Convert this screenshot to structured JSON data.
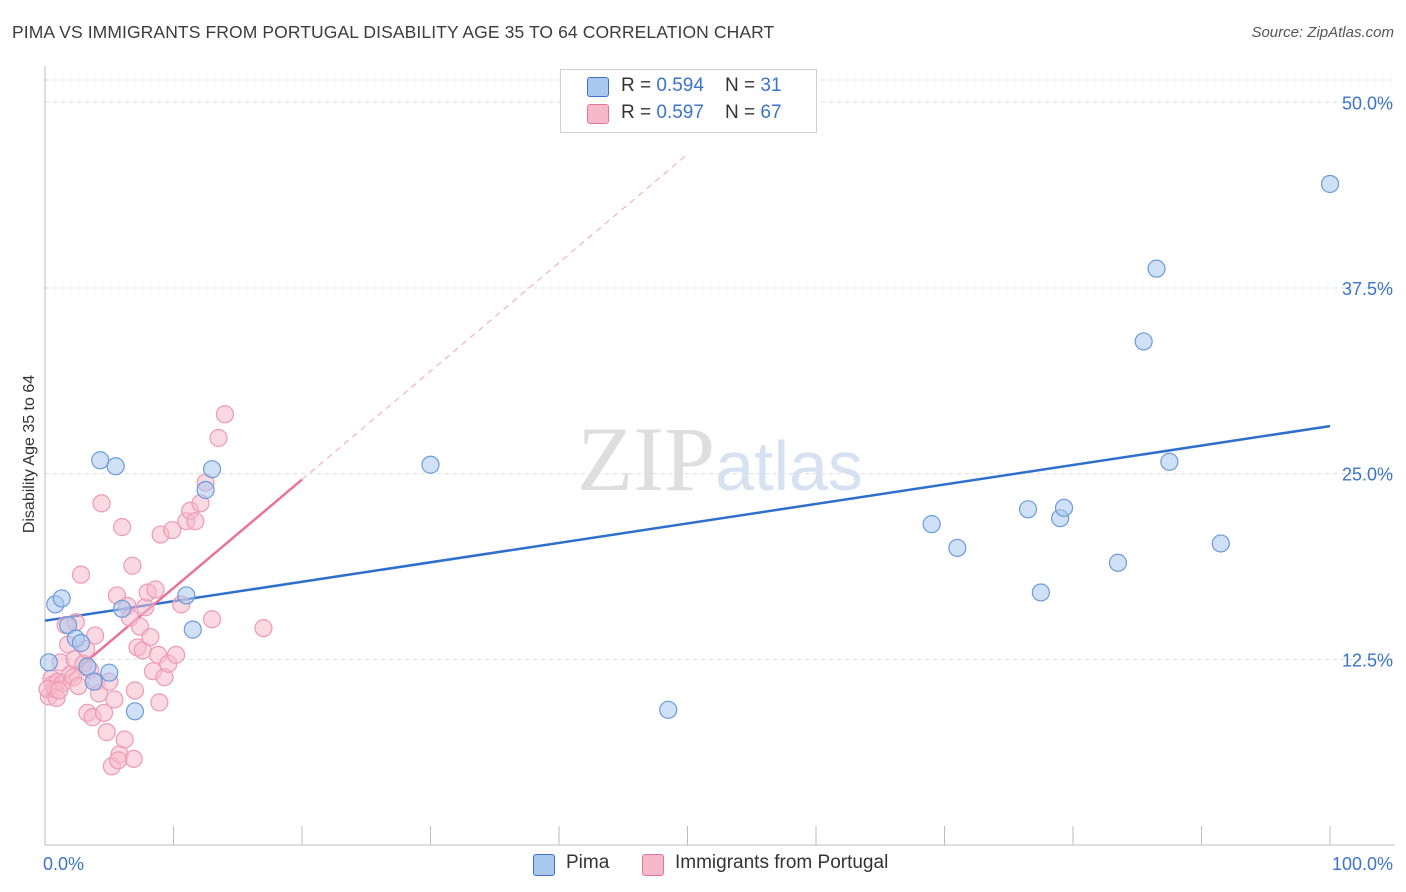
{
  "title": "PIMA VS IMMIGRANTS FROM PORTUGAL DISABILITY AGE 35 TO 64 CORRELATION CHART",
  "source": "Source: ZipAtlas.com",
  "watermark": "ZIPatlas",
  "colors": {
    "blue": "#3b74c9",
    "blue_fill": "#a9c8f0",
    "pink": "#e8739a",
    "pink_fill": "#f6b9cc",
    "grid": "#dddddd"
  },
  "legend": {
    "rows": [
      {
        "r_label": "R = ",
        "r_value": "0.594",
        "n_label": "N = ",
        "n_value": "31"
      },
      {
        "r_label": "R = ",
        "r_value": "0.597",
        "n_label": "N = ",
        "n_value": "67"
      }
    ]
  },
  "bottom_legend": {
    "pima": "Pima",
    "portugal": "Immigrants from Portugal"
  },
  "chart_data": {
    "type": "scatter",
    "title": "PIMA VS IMMIGRANTS FROM PORTUGAL DISABILITY AGE 35 TO 64 CORRELATION CHART",
    "xlabel": "",
    "ylabel": "Disability Age 35 to 64",
    "xlim": [
      0,
      100
    ],
    "ylim": [
      0,
      51.5
    ],
    "x_tick_labels": [
      "0.0%",
      "100.0%"
    ],
    "y_ticks": [
      12.5,
      25.0,
      37.5,
      50.0
    ],
    "y_tick_labels": [
      "12.5%",
      "25.0%",
      "37.5%",
      "50.0%"
    ],
    "grid": true,
    "legend_position": "top-center",
    "series": [
      {
        "name": "Pima",
        "color": "#3b74c9",
        "r": 0.594,
        "n": 31,
        "trend": {
          "x": [
            0,
            100
          ],
          "y": [
            15.1,
            28.2
          ]
        },
        "points": [
          {
            "x": 0.3,
            "y": 12.3
          },
          {
            "x": 0.8,
            "y": 16.2
          },
          {
            "x": 1.3,
            "y": 16.6
          },
          {
            "x": 1.8,
            "y": 14.8
          },
          {
            "x": 2.4,
            "y": 13.9
          },
          {
            "x": 2.8,
            "y": 13.6
          },
          {
            "x": 3.3,
            "y": 12.0
          },
          {
            "x": 3.8,
            "y": 11.0
          },
          {
            "x": 4.3,
            "y": 25.9
          },
          {
            "x": 5.0,
            "y": 11.6
          },
          {
            "x": 5.5,
            "y": 25.5
          },
          {
            "x": 6.0,
            "y": 15.9
          },
          {
            "x": 7.0,
            "y": 9.0
          },
          {
            "x": 11.0,
            "y": 16.8
          },
          {
            "x": 11.5,
            "y": 14.5
          },
          {
            "x": 12.5,
            "y": 23.9
          },
          {
            "x": 13.0,
            "y": 25.3
          },
          {
            "x": 30.0,
            "y": 25.6
          },
          {
            "x": 48.5,
            "y": 9.1
          },
          {
            "x": 69.0,
            "y": 21.6
          },
          {
            "x": 71.0,
            "y": 20.0
          },
          {
            "x": 76.5,
            "y": 22.6
          },
          {
            "x": 77.5,
            "y": 17.0
          },
          {
            "x": 79.0,
            "y": 22.0
          },
          {
            "x": 79.3,
            "y": 22.7
          },
          {
            "x": 83.5,
            "y": 19.0
          },
          {
            "x": 85.5,
            "y": 33.9
          },
          {
            "x": 86.5,
            "y": 38.8
          },
          {
            "x": 87.5,
            "y": 25.8
          },
          {
            "x": 91.5,
            "y": 20.3
          },
          {
            "x": 100.0,
            "y": 44.5
          }
        ]
      },
      {
        "name": "Immigrants from Portugal",
        "color": "#e8739a",
        "r": 0.597,
        "n": 67,
        "trend": {
          "x": [
            0,
            20
          ],
          "y": [
            10.0,
            24.6
          ]
        },
        "trend_extension": {
          "x": [
            20,
            50
          ],
          "y": [
            24.6,
            46.5
          ]
        },
        "points": [
          {
            "x": 0.3,
            "y": 10.0
          },
          {
            "x": 0.5,
            "y": 11.2
          },
          {
            "x": 0.6,
            "y": 10.8
          },
          {
            "x": 0.8,
            "y": 10.5
          },
          {
            "x": 1.0,
            "y": 11.0
          },
          {
            "x": 1.2,
            "y": 12.3
          },
          {
            "x": 1.4,
            "y": 10.9
          },
          {
            "x": 1.6,
            "y": 14.8
          },
          {
            "x": 1.8,
            "y": 13.5
          },
          {
            "x": 2.0,
            "y": 11.5
          },
          {
            "x": 2.2,
            "y": 11.3
          },
          {
            "x": 2.3,
            "y": 12.5
          },
          {
            "x": 2.4,
            "y": 15.0
          },
          {
            "x": 2.6,
            "y": 10.7
          },
          {
            "x": 2.8,
            "y": 18.2
          },
          {
            "x": 3.0,
            "y": 12.2
          },
          {
            "x": 3.2,
            "y": 13.2
          },
          {
            "x": 3.3,
            "y": 8.9
          },
          {
            "x": 3.5,
            "y": 11.8
          },
          {
            "x": 3.7,
            "y": 8.6
          },
          {
            "x": 3.9,
            "y": 14.1
          },
          {
            "x": 4.0,
            "y": 11.0
          },
          {
            "x": 4.2,
            "y": 10.2
          },
          {
            "x": 4.4,
            "y": 23.0
          },
          {
            "x": 4.6,
            "y": 8.9
          },
          {
            "x": 4.8,
            "y": 7.6
          },
          {
            "x": 5.0,
            "y": 11.0
          },
          {
            "x": 5.2,
            "y": 5.3
          },
          {
            "x": 5.4,
            "y": 9.8
          },
          {
            "x": 5.6,
            "y": 16.8
          },
          {
            "x": 5.8,
            "y": 6.1
          },
          {
            "x": 6.0,
            "y": 21.4
          },
          {
            "x": 6.2,
            "y": 7.1
          },
          {
            "x": 6.4,
            "y": 16.1
          },
          {
            "x": 6.6,
            "y": 15.3
          },
          {
            "x": 6.8,
            "y": 18.8
          },
          {
            "x": 7.0,
            "y": 10.4
          },
          {
            "x": 7.2,
            "y": 13.3
          },
          {
            "x": 7.4,
            "y": 14.7
          },
          {
            "x": 7.6,
            "y": 13.1
          },
          {
            "x": 7.8,
            "y": 16.0
          },
          {
            "x": 8.0,
            "y": 17.0
          },
          {
            "x": 8.2,
            "y": 14.0
          },
          {
            "x": 8.4,
            "y": 11.7
          },
          {
            "x": 8.6,
            "y": 17.2
          },
          {
            "x": 8.8,
            "y": 12.8
          },
          {
            "x": 9.0,
            "y": 20.9
          },
          {
            "x": 9.3,
            "y": 11.3
          },
          {
            "x": 9.6,
            "y": 12.2
          },
          {
            "x": 9.9,
            "y": 21.2
          },
          {
            "x": 10.2,
            "y": 12.8
          },
          {
            "x": 10.6,
            "y": 16.2
          },
          {
            "x": 11.0,
            "y": 21.8
          },
          {
            "x": 11.3,
            "y": 22.5
          },
          {
            "x": 11.7,
            "y": 21.8
          },
          {
            "x": 12.1,
            "y": 23.0
          },
          {
            "x": 12.5,
            "y": 24.4
          },
          {
            "x": 13.0,
            "y": 15.2
          },
          {
            "x": 13.5,
            "y": 27.4
          },
          {
            "x": 14.0,
            "y": 29.0
          },
          {
            "x": 17.0,
            "y": 14.6
          },
          {
            "x": 0.2,
            "y": 10.5
          },
          {
            "x": 0.9,
            "y": 9.9
          },
          {
            "x": 1.1,
            "y": 10.4
          },
          {
            "x": 6.9,
            "y": 5.8
          },
          {
            "x": 5.7,
            "y": 5.7
          },
          {
            "x": 8.9,
            "y": 9.6
          }
        ]
      }
    ]
  }
}
